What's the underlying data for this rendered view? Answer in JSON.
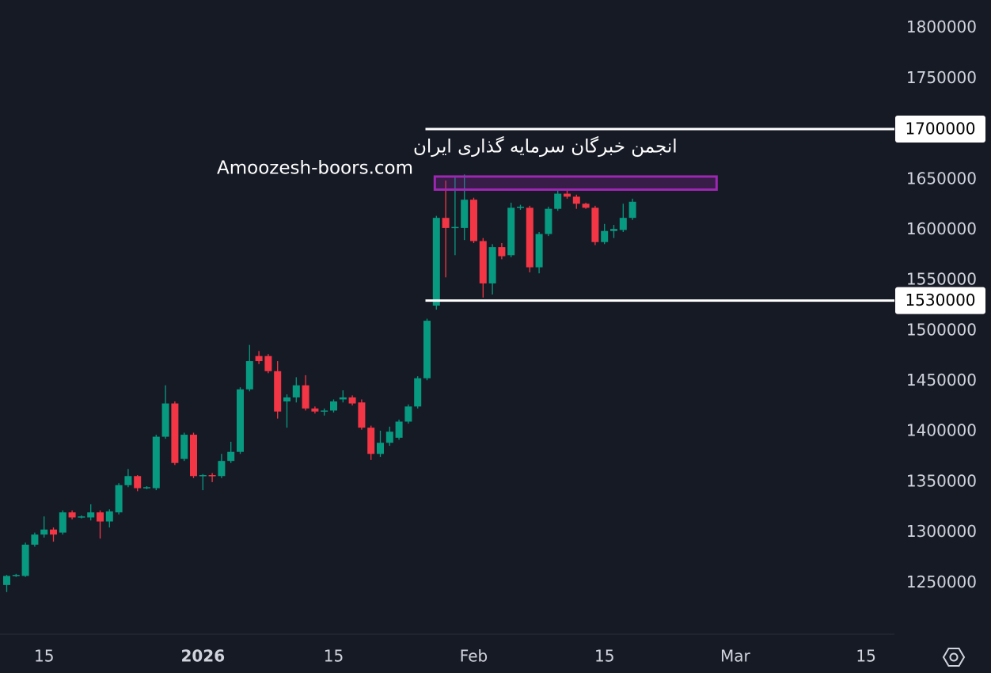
{
  "chart_data": {
    "type": "candlestick",
    "x": [
      "2025-12-11",
      "2025-12-12",
      "2025-12-13",
      "2025-12-14",
      "2025-12-15",
      "2025-12-16",
      "2025-12-17",
      "2025-12-18",
      "2025-12-19",
      "2025-12-20",
      "2025-12-21",
      "2025-12-22",
      "2025-12-23",
      "2025-12-24",
      "2025-12-25",
      "2025-12-26",
      "2025-12-27",
      "2025-12-28",
      "2025-12-29",
      "2025-12-30",
      "2025-12-31",
      "2026-01-01",
      "2026-01-02",
      "2026-01-03",
      "2026-01-04",
      "2026-01-05",
      "2026-01-06",
      "2026-01-07",
      "2026-01-08",
      "2026-01-09",
      "2026-01-10",
      "2026-01-11",
      "2026-01-12",
      "2026-01-13",
      "2026-01-14",
      "2026-01-15",
      "2026-01-16",
      "2026-01-17",
      "2026-01-18",
      "2026-01-19",
      "2026-01-20",
      "2026-01-21",
      "2026-01-22",
      "2026-01-23",
      "2026-01-24",
      "2026-01-25",
      "2026-01-28",
      "2026-01-29",
      "2026-01-30",
      "2026-01-31",
      "2026-02-01",
      "2026-02-02",
      "2026-02-03",
      "2026-02-04",
      "2026-02-05",
      "2026-02-06",
      "2026-02-07",
      "2026-02-08",
      "2026-02-09",
      "2026-02-10",
      "2026-02-11",
      "2026-02-12",
      "2026-02-13",
      "2026-02-14",
      "2026-02-15",
      "2026-02-16",
      "2026-02-17",
      "2026-02-18"
    ],
    "open": [
      1248000,
      1257000,
      1257000,
      1288000,
      1298000,
      1303000,
      1300000,
      1320000,
      1315000,
      1315000,
      1320000,
      1311000,
      1320000,
      1347000,
      1356000,
      1344000,
      1344000,
      1395000,
      1428000,
      1373000,
      1397000,
      1356000,
      1357000,
      1356000,
      1371000,
      1380000,
      1442000,
      1475000,
      1475000,
      1460000,
      1430000,
      1434000,
      1446000,
      1423000,
      1420000,
      1421000,
      1432000,
      1434000,
      1429000,
      1404000,
      1378000,
      1389000,
      1394000,
      1410000,
      1425000,
      1453000,
      1525000,
      1612000,
      1602000,
      1602000,
      1630000,
      1589000,
      1547000,
      1583000,
      1575000,
      1622000,
      1622000,
      1563000,
      1596000,
      1621000,
      1636000,
      1633000,
      1626000,
      1622000,
      1588000,
      1599000,
      1600000,
      1612000
    ],
    "high": [
      1258000,
      1259000,
      1290000,
      1300000,
      1316000,
      1305000,
      1322000,
      1322000,
      1317000,
      1328000,
      1322000,
      1323000,
      1349000,
      1363000,
      1357000,
      1346000,
      1397000,
      1446000,
      1430000,
      1399000,
      1399000,
      1358000,
      1359000,
      1378000,
      1390000,
      1444000,
      1486000,
      1480000,
      1477000,
      1470000,
      1437000,
      1454000,
      1456000,
      1425000,
      1423000,
      1432000,
      1441000,
      1436000,
      1432000,
      1406000,
      1401000,
      1405000,
      1412000,
      1427000,
      1455000,
      1512000,
      1614000,
      1649000,
      1654000,
      1655000,
      1632000,
      1592000,
      1586000,
      1587000,
      1627000,
      1625000,
      1624000,
      1598000,
      1623000,
      1640000,
      1640000,
      1635000,
      1627000,
      1624000,
      1606000,
      1605000,
      1626000,
      1631000
    ],
    "low": [
      1241000,
      1256000,
      1256000,
      1286000,
      1295000,
      1291000,
      1298000,
      1313000,
      1314000,
      1312000,
      1294000,
      1305000,
      1318000,
      1345000,
      1341000,
      1343000,
      1342000,
      1393000,
      1367000,
      1371000,
      1354000,
      1342000,
      1350000,
      1354000,
      1369000,
      1378000,
      1440000,
      1467000,
      1458000,
      1413000,
      1404000,
      1429000,
      1421000,
      1418000,
      1416000,
      1419000,
      1429000,
      1426000,
      1402000,
      1372000,
      1375000,
      1386000,
      1392000,
      1408000,
      1423000,
      1451000,
      1521000,
      1553000,
      1575000,
      1590000,
      1587000,
      1533000,
      1536000,
      1571000,
      1573000,
      1620000,
      1558000,
      1557000,
      1594000,
      1619000,
      1631000,
      1621000,
      1621000,
      1585000,
      1586000,
      1592000,
      1598000,
      1610000
    ],
    "close": [
      1257000,
      1258000,
      1288000,
      1298000,
      1303000,
      1298000,
      1320000,
      1315000,
      1316000,
      1320000,
      1311000,
      1321000,
      1347000,
      1356000,
      1344000,
      1345000,
      1395000,
      1428000,
      1369000,
      1397000,
      1356000,
      1357000,
      1356000,
      1371000,
      1380000,
      1442000,
      1470000,
      1470000,
      1460000,
      1420000,
      1434000,
      1446000,
      1423000,
      1420000,
      1421000,
      1430000,
      1434000,
      1428000,
      1404000,
      1378000,
      1389000,
      1400000,
      1410000,
      1425000,
      1453000,
      1510000,
      1612000,
      1602000,
      1603000,
      1630000,
      1589000,
      1547000,
      1583000,
      1574000,
      1622000,
      1623000,
      1563000,
      1596000,
      1621000,
      1636000,
      1633000,
      1626000,
      1622000,
      1588000,
      1599000,
      1601000,
      1612000,
      1628000
    ],
    "up_color": "#089981",
    "down_color": "#f23645",
    "ylim": [
      1200000,
      1828000
    ],
    "yticks": [
      1250000,
      1300000,
      1350000,
      1400000,
      1450000,
      1500000,
      1550000,
      1600000,
      1650000,
      1700000,
      1750000,
      1800000
    ],
    "xticks": [
      {
        "value": "2025-12-15",
        "label": "15"
      },
      {
        "value": "2026-01-01",
        "label": "2026"
      },
      {
        "value": "2026-01-15",
        "label": "15"
      },
      {
        "value": "2026-02-01",
        "label": "Feb"
      },
      {
        "value": "2026-02-15",
        "label": "15"
      },
      {
        "value": "2026-03-01",
        "label": "Mar"
      },
      {
        "value": "2026-03-15",
        "label": "15"
      }
    ],
    "hlines": [
      {
        "value": 1700000,
        "x_start": "2026-01-25",
        "color": "#ffffff"
      },
      {
        "value": 1530000,
        "x_start": "2026-01-25",
        "color": "#ffffff"
      }
    ],
    "zone": {
      "x": [
        "2026-01-28",
        "2026-02-27"
      ],
      "y": [
        1640000,
        1653000
      ],
      "color": "#9c27b0"
    },
    "watermark": [
      "انجمن خبرگان سرمایه گذاری ایران",
      "Amoozesh-boors.com"
    ]
  }
}
